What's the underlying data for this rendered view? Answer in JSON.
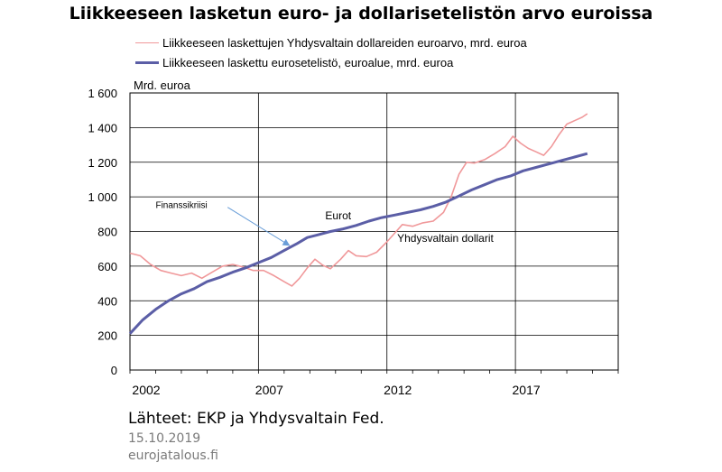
{
  "chart_data": {
    "type": "line",
    "title": "Liikkeeseen lasketun euro- ja dollarisetelistön arvo euroissa",
    "unit_label": "Mrd. euroa",
    "x_ticks": [
      "2002",
      "2007",
      "2012",
      "2017"
    ],
    "x_tick_values": [
      2002,
      2007,
      2012,
      2017
    ],
    "xlim": [
      2002,
      2021
    ],
    "y_ticks": [
      "0",
      "200",
      "400",
      "600",
      "800",
      "1 000",
      "1 200",
      "1 400",
      "1 600"
    ],
    "y_tick_values": [
      0,
      200,
      400,
      600,
      800,
      1000,
      1200,
      1400,
      1600
    ],
    "ylim": [
      0,
      1600
    ],
    "grid": true,
    "legend_position": "top-left",
    "series": [
      {
        "name": "Liikkeeseen laskettujen Yhdysvaltain dollareiden euroarvo, mrd. euroa",
        "inline_label": "Yhdysvaltain dollarit",
        "color": "#f0989a",
        "points": [
          [
            2002.0,
            675
          ],
          [
            2002.4,
            660
          ],
          [
            2002.8,
            610
          ],
          [
            2003.2,
            575
          ],
          [
            2003.6,
            560
          ],
          [
            2004.0,
            545
          ],
          [
            2004.4,
            560
          ],
          [
            2004.8,
            530
          ],
          [
            2005.2,
            565
          ],
          [
            2005.6,
            600
          ],
          [
            2006.0,
            610
          ],
          [
            2006.4,
            595
          ],
          [
            2006.8,
            575
          ],
          [
            2007.2,
            575
          ],
          [
            2007.6,
            545
          ],
          [
            2008.0,
            510
          ],
          [
            2008.3,
            485
          ],
          [
            2008.6,
            530
          ],
          [
            2008.9,
            590
          ],
          [
            2009.2,
            640
          ],
          [
            2009.5,
            605
          ],
          [
            2009.8,
            585
          ],
          [
            2010.2,
            640
          ],
          [
            2010.5,
            690
          ],
          [
            2010.8,
            660
          ],
          [
            2011.2,
            655
          ],
          [
            2011.6,
            680
          ],
          [
            2012.0,
            740
          ],
          [
            2012.3,
            790
          ],
          [
            2012.6,
            840
          ],
          [
            2013.0,
            830
          ],
          [
            2013.4,
            850
          ],
          [
            2013.8,
            860
          ],
          [
            2014.2,
            910
          ],
          [
            2014.5,
            1000
          ],
          [
            2014.8,
            1130
          ],
          [
            2015.1,
            1200
          ],
          [
            2015.4,
            1195
          ],
          [
            2015.8,
            1215
          ],
          [
            2016.2,
            1250
          ],
          [
            2016.6,
            1290
          ],
          [
            2016.9,
            1350
          ],
          [
            2017.2,
            1310
          ],
          [
            2017.5,
            1280
          ],
          [
            2017.8,
            1260
          ],
          [
            2018.1,
            1240
          ],
          [
            2018.4,
            1290
          ],
          [
            2018.7,
            1360
          ],
          [
            2019.0,
            1420
          ],
          [
            2019.3,
            1440
          ],
          [
            2019.6,
            1460
          ],
          [
            2019.8,
            1480
          ]
        ]
      },
      {
        "name": "Liikkeeseen laskettu eurosetelistö, euroalue, mrd. euroa",
        "inline_label": "Eurot",
        "color": "#5b5ea6",
        "points": [
          [
            2002.0,
            210
          ],
          [
            2002.5,
            290
          ],
          [
            2003.0,
            350
          ],
          [
            2003.5,
            400
          ],
          [
            2004.0,
            440
          ],
          [
            2004.5,
            470
          ],
          [
            2005.0,
            510
          ],
          [
            2005.5,
            535
          ],
          [
            2006.0,
            565
          ],
          [
            2006.5,
            590
          ],
          [
            2007.0,
            620
          ],
          [
            2007.5,
            650
          ],
          [
            2008.0,
            690
          ],
          [
            2008.5,
            730
          ],
          [
            2008.9,
            765
          ],
          [
            2009.3,
            780
          ],
          [
            2009.8,
            800
          ],
          [
            2010.3,
            815
          ],
          [
            2010.8,
            835
          ],
          [
            2011.3,
            860
          ],
          [
            2011.8,
            880
          ],
          [
            2012.3,
            895
          ],
          [
            2012.8,
            910
          ],
          [
            2013.3,
            925
          ],
          [
            2013.8,
            945
          ],
          [
            2014.3,
            970
          ],
          [
            2014.8,
            1005
          ],
          [
            2015.3,
            1040
          ],
          [
            2015.8,
            1070
          ],
          [
            2016.3,
            1100
          ],
          [
            2016.8,
            1120
          ],
          [
            2017.3,
            1150
          ],
          [
            2017.8,
            1170
          ],
          [
            2018.3,
            1190
          ],
          [
            2018.8,
            1210
          ],
          [
            2019.3,
            1230
          ],
          [
            2019.8,
            1250
          ]
        ]
      }
    ],
    "annotations": [
      {
        "text": "Finanssikriisi",
        "x": 2003.0,
        "y": 935
      },
      {
        "text": "Eurot",
        "x": 2009.6,
        "y": 870
      },
      {
        "text": "Yhdysvaltain dollarit",
        "x": 2012.4,
        "y": 740
      }
    ],
    "crisis_arrow": {
      "from": [
        2005.8,
        940
      ],
      "to": [
        2008.2,
        720
      ]
    }
  },
  "footer": {
    "source": "Lähteet: EKP ja Yhdysvaltain Fed.",
    "date": "15.10.2019",
    "site": "eurojatalous.fi"
  }
}
